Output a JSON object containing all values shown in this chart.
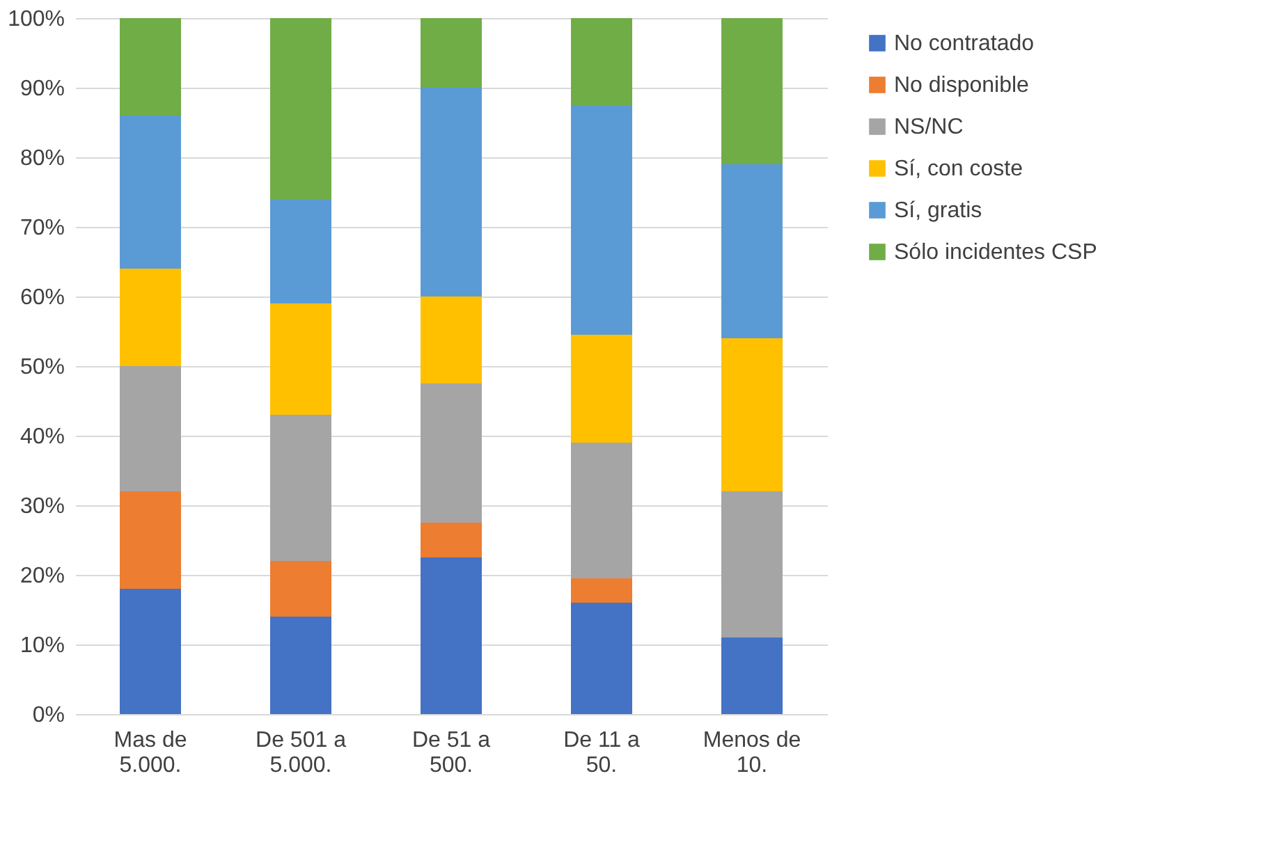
{
  "chart_data": {
    "type": "bar",
    "stacked": true,
    "categories": [
      "Mas de 5.000.",
      "De 501 a 5.000.",
      "De 51 a 500.",
      "De 11 a 50.",
      "Menos de 10."
    ],
    "series": [
      {
        "name": "No contratado",
        "color": "#4472c4",
        "values": [
          18,
          14,
          22.5,
          16,
          11
        ]
      },
      {
        "name": "No disponible",
        "color": "#ed7d31",
        "values": [
          14,
          8,
          5,
          3.5,
          0
        ]
      },
      {
        "name": "NS/NC",
        "color": "#a5a5a5",
        "values": [
          18,
          21,
          20,
          19.5,
          21
        ]
      },
      {
        "name": "Sí, con coste",
        "color": "#ffc000",
        "values": [
          14,
          16,
          12.5,
          15.5,
          22
        ]
      },
      {
        "name": "Sí, gratis",
        "color": "#5b9bd5",
        "values": [
          22,
          15,
          30,
          33,
          25
        ]
      },
      {
        "name": "Sólo incidentes CSP",
        "color": "#70ad47",
        "values": [
          14,
          26,
          10,
          12.5,
          21
        ]
      }
    ],
    "ylim": [
      0,
      100
    ],
    "yticks": [
      {
        "value": 0,
        "label": "0%"
      },
      {
        "value": 10,
        "label": "10%"
      },
      {
        "value": 20,
        "label": "20%"
      },
      {
        "value": 30,
        "label": "30%"
      },
      {
        "value": 40,
        "label": "40%"
      },
      {
        "value": 50,
        "label": "50%"
      },
      {
        "value": 60,
        "label": "60%"
      },
      {
        "value": 70,
        "label": "70%"
      },
      {
        "value": 80,
        "label": "80%"
      },
      {
        "value": 90,
        "label": "90%"
      },
      {
        "value": 100,
        "label": "100%"
      }
    ],
    "grid": "y",
    "legend": "right"
  }
}
